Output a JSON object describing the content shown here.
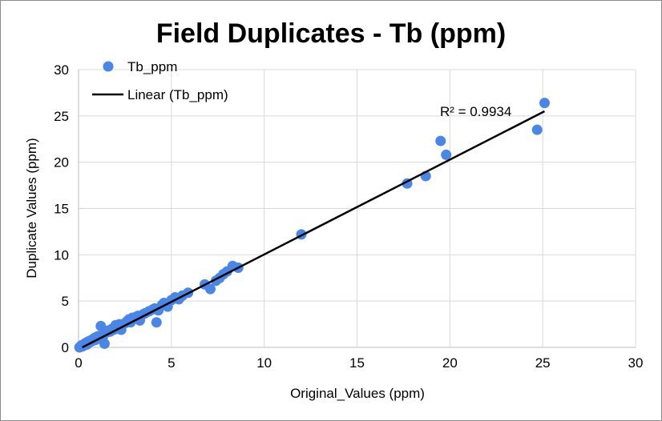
{
  "chart_data": {
    "type": "scatter",
    "title": "Field Duplicates  - Tb (ppm)",
    "xlabel": "Original_Values (ppm)",
    "ylabel": "Duplicate Values (ppm)",
    "xlim": [
      0,
      30
    ],
    "ylim": [
      0,
      30
    ],
    "xticks": [
      "0",
      "5",
      "10",
      "15",
      "20",
      "25",
      "30"
    ],
    "yticks": [
      "0",
      "5",
      "10",
      "15",
      "20",
      "25",
      "30"
    ],
    "grid": true,
    "legend_position": "top-left",
    "series": [
      {
        "name": "Tb_ppm",
        "color": "#4a86e8",
        "x": [
          0.05,
          0.1,
          0.15,
          0.2,
          0.25,
          0.3,
          0.35,
          0.4,
          0.45,
          0.5,
          0.55,
          0.6,
          0.65,
          0.7,
          0.75,
          0.8,
          0.85,
          0.9,
          0.95,
          1.0,
          1.05,
          1.1,
          1.2,
          1.25,
          1.3,
          1.35,
          1.4,
          1.5,
          1.6,
          1.7,
          1.8,
          1.9,
          2.0,
          2.1,
          2.2,
          2.3,
          2.5,
          2.6,
          2.7,
          2.8,
          2.9,
          3.0,
          3.1,
          3.2,
          3.3,
          3.5,
          3.6,
          3.8,
          4.0,
          4.1,
          4.2,
          4.3,
          4.5,
          4.6,
          4.8,
          5.0,
          5.2,
          5.4,
          5.6,
          5.9,
          6.8,
          7.1,
          7.4,
          7.6,
          7.8,
          8.0,
          8.3,
          8.6,
          12.0,
          17.7,
          18.7,
          19.5,
          19.8,
          24.7,
          25.1
        ],
        "y": [
          0.0,
          0.1,
          0.2,
          0.1,
          0.3,
          0.2,
          0.4,
          0.5,
          0.3,
          0.6,
          0.5,
          0.7,
          0.6,
          0.8,
          0.7,
          0.9,
          1.0,
          0.8,
          1.1,
          1.0,
          1.2,
          1.1,
          2.3,
          1.3,
          1.0,
          1.5,
          0.4,
          1.6,
          1.8,
          1.7,
          2.0,
          1.9,
          2.4,
          2.2,
          2.5,
          1.9,
          2.6,
          2.8,
          3.0,
          2.7,
          3.2,
          3.1,
          3.3,
          3.4,
          2.9,
          3.6,
          3.7,
          3.9,
          4.1,
          4.2,
          2.7,
          4.0,
          4.6,
          4.8,
          4.4,
          5.1,
          5.4,
          5.2,
          5.6,
          5.9,
          6.8,
          6.3,
          7.2,
          7.5,
          7.9,
          8.2,
          8.8,
          8.6,
          12.2,
          17.7,
          18.5,
          22.3,
          20.8,
          23.5,
          26.4
        ]
      }
    ],
    "trendline": {
      "name": "Linear (Tb_ppm)",
      "color": "#000000",
      "x": [
        0.2,
        25.1
      ],
      "y": [
        0.0,
        25.5
      ],
      "r2_label": "R² = 0.9934"
    }
  }
}
